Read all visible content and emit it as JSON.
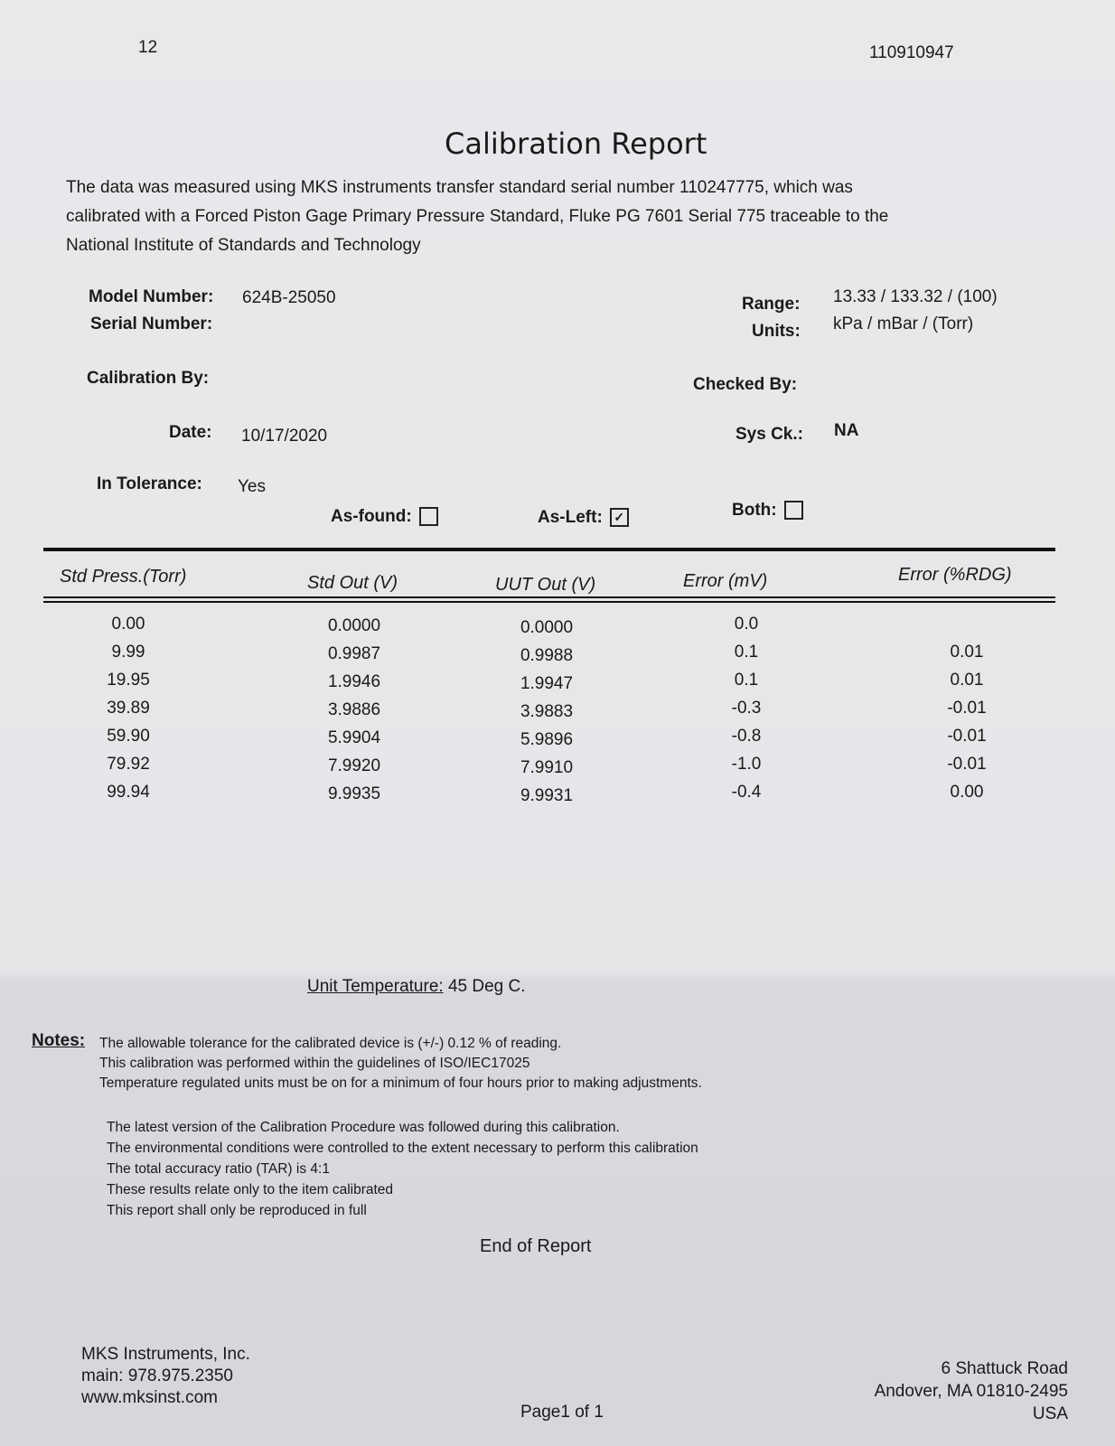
{
  "header": {
    "page_number": "12",
    "document_id": "110910947"
  },
  "title": "Calibration Report",
  "intro": "The data was measured using MKS instruments transfer standard serial number 110247775, which was calibrated with a Forced Piston Gage Primary Pressure Standard, Fluke PG 7601 Serial 775 traceable to the National Institute of Standards and Technology",
  "fields": {
    "model_label": "Model Number:",
    "model_value": "624B-25050",
    "serial_label": "Serial Number:",
    "serial_value": "",
    "range_label": "Range:",
    "range_value": "13.33 / 133.32 / (100)",
    "units_label": "Units:",
    "units_value": "kPa / mBar / (Torr)",
    "cal_by_label": "Calibration By:",
    "checked_by_label": "Checked By:",
    "date_label": "Date:",
    "date_value": "10/17/2020",
    "sysck_label": "Sys Ck.:",
    "sysck_value": "NA",
    "tolerance_label": "In Tolerance:",
    "tolerance_value": "Yes",
    "as_found_label": "As-found:",
    "as_found_checked": false,
    "as_left_label": "As-Left:",
    "as_left_checked": true,
    "both_label": "Both:",
    "both_checked": false
  },
  "table": {
    "headers": [
      "Std Press.(Torr)",
      "Std Out (V)",
      "UUT Out (V)",
      "Error (mV)",
      "Error (%RDG)"
    ],
    "rows": [
      [
        "0.00",
        "0.0000",
        "0.0000",
        "0.0",
        ""
      ],
      [
        "9.99",
        "0.9987",
        "0.9988",
        "0.1",
        "0.01"
      ],
      [
        "19.95",
        "1.9946",
        "1.9947",
        "0.1",
        "0.01"
      ],
      [
        "39.89",
        "3.9886",
        "3.9883",
        "-0.3",
        "-0.01"
      ],
      [
        "59.90",
        "5.9904",
        "5.9896",
        "-0.8",
        "-0.01"
      ],
      [
        "79.92",
        "7.9920",
        "7.9910",
        "-1.0",
        "-0.01"
      ],
      [
        "99.94",
        "9.9935",
        "9.9931",
        "-0.4",
        "0.00"
      ]
    ]
  },
  "unit_temp": {
    "label": "Unit Temperature:",
    "value": "45 Deg C."
  },
  "notes": {
    "label": "Notes:",
    "lines": [
      "The allowable tolerance for the calibrated device is (+/-) 0.12 % of reading.",
      "This calibration was performed within the guidelines of ISO/IEC17025",
      "Temperature regulated units must be on for a minimum of four hours prior to making adjustments."
    ],
    "lines2": [
      "The latest version of the Calibration Procedure was followed during this calibration.",
      "The environmental conditions were controlled to the extent necessary to perform this calibration",
      "The total accuracy ratio (TAR) is 4:1",
      "These results relate only to the item calibrated",
      "This report shall only be reproduced in full"
    ]
  },
  "end": "End of Report",
  "footer": {
    "company": "MKS Instruments, Inc.",
    "phone": "main:  978.975.2350",
    "web": "www.mksinst.com",
    "page": "Page1 of 1",
    "addr1": "6 Shattuck Road",
    "addr2": "Andover, MA  01810-2495",
    "addr3": "USA"
  }
}
